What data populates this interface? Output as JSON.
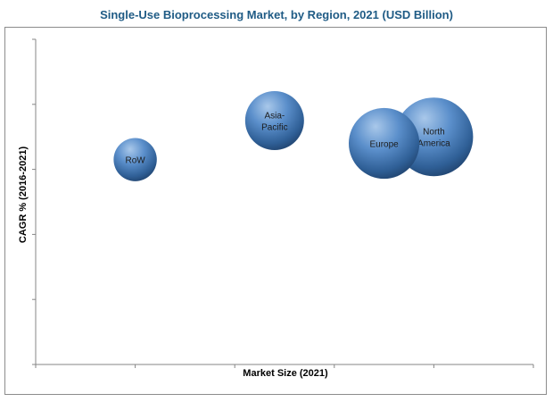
{
  "chart_data": {
    "type": "scatter",
    "title": "Single-Use Bioprocessing Market, by Region, 2021 (USD Billion)",
    "xlabel": "Market Size (2021)",
    "ylabel": "CAGR % (2016-2021)",
    "x_ticks": 5,
    "y_ticks": 5,
    "grid": false,
    "bubbles": [
      {
        "name": "RoW",
        "label_lines": [
          "RoW"
        ],
        "x": 1.0,
        "y": 3.15,
        "size": 0.55
      },
      {
        "name": "Asia-Pacific",
        "label_lines": [
          "Asia-",
          "Pacific"
        ],
        "x": 2.4,
        "y": 3.75,
        "size": 0.75
      },
      {
        "name": "North America",
        "label_lines": [
          "North",
          "America"
        ],
        "x": 4.0,
        "y": 3.5,
        "size": 1.0
      },
      {
        "name": "Europe",
        "label_lines": [
          "Europe"
        ],
        "x": 3.5,
        "y": 3.4,
        "size": 0.9
      }
    ],
    "xlim": [
      0,
      5
    ],
    "ylim": [
      0,
      5
    ],
    "bubble_color": "#4a7fb9"
  }
}
